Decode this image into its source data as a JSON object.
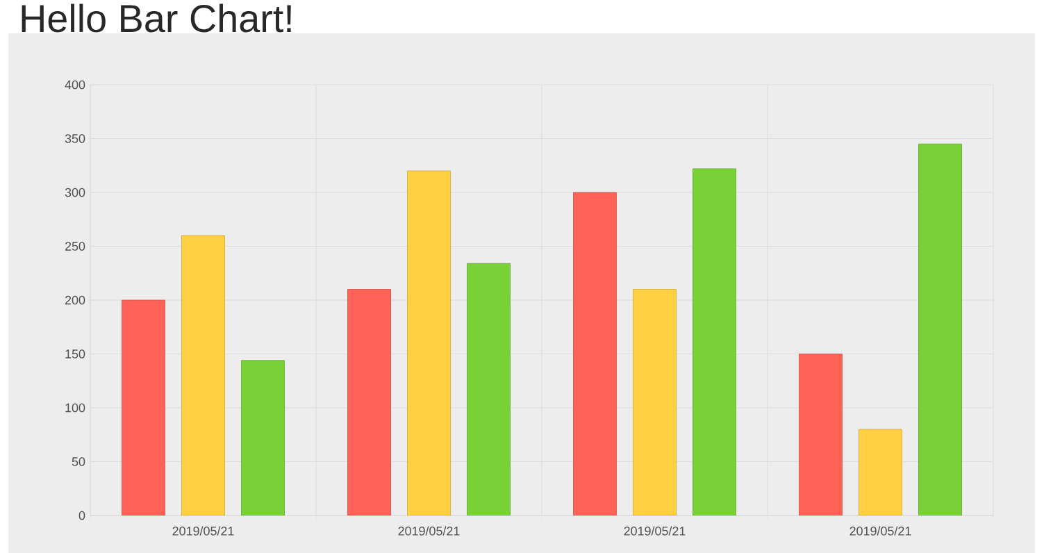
{
  "chart_data": {
    "type": "bar",
    "title": "Hello Bar Chart!",
    "categories": [
      "2019/05/21",
      "2019/05/21",
      "2019/05/21",
      "2019/05/21"
    ],
    "series": [
      {
        "color": "#ff6358",
        "values": [
          200,
          210,
          300,
          150
        ]
      },
      {
        "color": "#ffd142",
        "values": [
          260,
          320,
          210,
          80
        ]
      },
      {
        "color": "#78d237",
        "values": [
          144,
          234,
          322,
          345
        ]
      }
    ],
    "ylim": [
      0,
      400
    ],
    "yticks": [
      0,
      50,
      100,
      150,
      200,
      250,
      300,
      350,
      400
    ],
    "grid": true
  }
}
